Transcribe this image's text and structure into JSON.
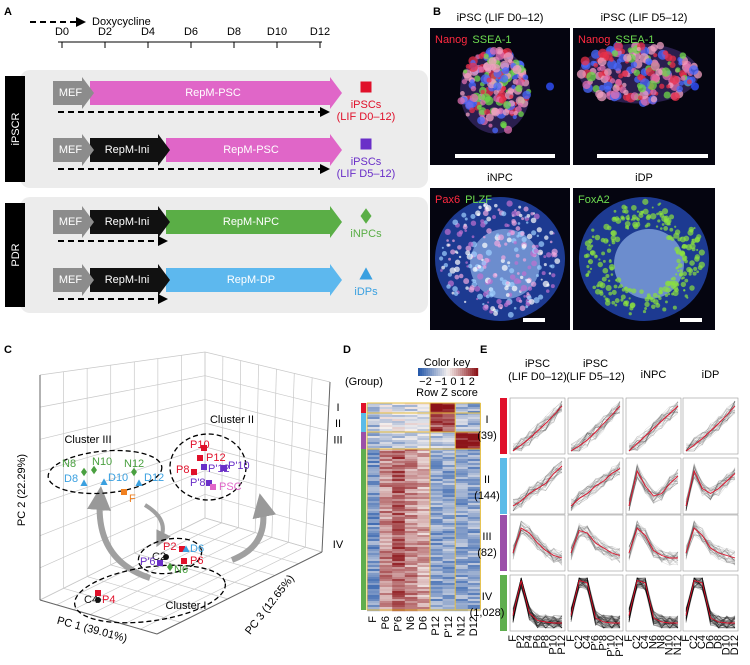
{
  "panel_labels": {
    "a": "A",
    "b": "B",
    "c": "C",
    "d": "D",
    "e": "E"
  },
  "panel_a": {
    "legend": "Doxycycline",
    "days": [
      "D0",
      "D2",
      "D4",
      "D6",
      "D8",
      "D10",
      "D12"
    ],
    "groups": [
      {
        "label": "iPSCR",
        "rows": [
          {
            "segments": [
              {
                "label": "MEF",
                "color": "#8c8c8c"
              },
              {
                "label": "RepM-PSC",
                "color": "#e066c8"
              }
            ],
            "marker": {
              "shape": "square",
              "color": "#e0102a"
            },
            "result": "iPSCs",
            "note": "(LIF D0–12)"
          },
          {
            "segments": [
              {
                "label": "MEF",
                "color": "#8c8c8c"
              },
              {
                "label": "RepM-Ini",
                "color": "#111111"
              },
              {
                "label": "RepM-PSC",
                "color": "#e066c8"
              }
            ],
            "marker": {
              "shape": "square",
              "color": "#6a2fc8"
            },
            "result": "iPSCs",
            "note": "(LIF D5–12)"
          }
        ]
      },
      {
        "label": "PDR",
        "rows": [
          {
            "segments": [
              {
                "label": "MEF",
                "color": "#8c8c8c"
              },
              {
                "label": "RepM-Ini",
                "color": "#111111"
              },
              {
                "label": "RepM-NPC",
                "color": "#5aae46"
              }
            ],
            "marker": {
              "shape": "diamond",
              "color": "#5aae46"
            },
            "result": "iNPCs"
          },
          {
            "segments": [
              {
                "label": "MEF",
                "color": "#8c8c8c"
              },
              {
                "label": "RepM-Ini",
                "color": "#111111"
              },
              {
                "label": "RepM-DP",
                "color": "#5db8ee"
              }
            ],
            "marker": {
              "shape": "triangle",
              "color": "#3aa0e0"
            },
            "result": "iDPs"
          }
        ]
      }
    ]
  },
  "panel_b": {
    "images": [
      {
        "title": "iPSC (LIF D0–12)",
        "stains": [
          {
            "text": "Nanog",
            "color": "#ff2a40"
          },
          {
            "text": "SSEA-1",
            "color": "#6ddc50"
          }
        ]
      },
      {
        "title": "iPSC (LIF D5–12)",
        "stains": [
          {
            "text": "Nanog",
            "color": "#ff2a40"
          },
          {
            "text": "SSEA-1",
            "color": "#6ddc50"
          }
        ]
      },
      {
        "title": "iNPC",
        "stains": [
          {
            "text": "Pax6",
            "color": "#ff2a40"
          },
          {
            "text": "PLZF",
            "color": "#6ddc50"
          }
        ]
      },
      {
        "title": "iDP",
        "stains": [
          {
            "text": "FoxA2",
            "color": "#6ddc50"
          }
        ]
      }
    ]
  },
  "panel_c": {
    "axes": {
      "x": "PC 1 (39.01%)",
      "y": "PC 2 (22.29%)",
      "z": "PC 3 (12.65%)"
    },
    "clusters": [
      "Cluster III",
      "Cluster II",
      "Cluster I"
    ],
    "points": [
      {
        "label": "N8",
        "shape": "diamond",
        "color": "#4aa040"
      },
      {
        "label": "N10",
        "shape": "diamond",
        "color": "#4aa040"
      },
      {
        "label": "N12",
        "shape": "diamond",
        "color": "#4aa040"
      },
      {
        "label": "D8",
        "shape": "triangle",
        "color": "#3aa0e0"
      },
      {
        "label": "D10",
        "shape": "triangle",
        "color": "#3aa0e0"
      },
      {
        "label": "D12",
        "shape": "triangle",
        "color": "#3aa0e0"
      },
      {
        "label": "F",
        "shape": "square",
        "color": "#f08020"
      },
      {
        "label": "P10",
        "shape": "square",
        "color": "#e0102a"
      },
      {
        "label": "P12",
        "shape": "square",
        "color": "#e0102a"
      },
      {
        "label": "P8",
        "shape": "square",
        "color": "#e0102a"
      },
      {
        "label": "P'12",
        "shape": "square",
        "color": "#6a2fc8"
      },
      {
        "label": "P'10",
        "shape": "square",
        "color": "#6a2fc8"
      },
      {
        "label": "P'8",
        "shape": "square",
        "color": "#6a2fc8"
      },
      {
        "label": "PSC",
        "shape": "square",
        "color": "#e066c8"
      },
      {
        "label": "P2",
        "shape": "square",
        "color": "#e0102a"
      },
      {
        "label": "D6",
        "shape": "triangle",
        "color": "#3aa0e0"
      },
      {
        "label": "C2",
        "shape": "circle",
        "color": "#111111"
      },
      {
        "label": "P6",
        "shape": "square",
        "color": "#e0102a"
      },
      {
        "label": "P'6",
        "shape": "square",
        "color": "#6a2fc8"
      },
      {
        "label": "N6",
        "shape": "diamond",
        "color": "#4aa040"
      },
      {
        "label": "C4",
        "shape": "circle",
        "color": "#111111"
      },
      {
        "label": "P4",
        "shape": "square",
        "color": "#e0102a"
      }
    ]
  },
  "panel_d": {
    "group_header": "(Group)",
    "color_key": "Color key",
    "key_ticks": "−2 −1 0 1 2",
    "key_label": "Row Z score",
    "groups": [
      "I",
      "II",
      "III",
      "IV"
    ],
    "columns": [
      "F",
      "P6",
      "P'6",
      "N6",
      "D6",
      "P12",
      "P'12",
      "N12",
      "D12"
    ]
  },
  "panel_e": {
    "conditions": [
      {
        "name": "iPSC",
        "note": "(LIF D0–12)"
      },
      {
        "name": "iPSC",
        "note": "(LIF D5–12)"
      },
      {
        "name": "iNPC"
      },
      {
        "name": "iDP"
      }
    ],
    "groups": [
      {
        "label": "I",
        "count": "(39)",
        "color": "#e0102a"
      },
      {
        "label": "II",
        "count": "(144)",
        "color": "#5bbbe8"
      },
      {
        "label": "III",
        "count": "(82)",
        "color": "#9b4fa8"
      },
      {
        "label": "IV",
        "count": "(1,028)",
        "color": "#5fae4e"
      }
    ],
    "xlabels": [
      [
        "F",
        "P2",
        "P4",
        "P6",
        "P8",
        "P10",
        "P12"
      ],
      [
        "F",
        "C2",
        "C4",
        "P'6",
        "P'8",
        "P'10",
        "P'12"
      ],
      [
        "F",
        "C2",
        "C4",
        "N6",
        "N8",
        "N10",
        "N12"
      ],
      [
        "F",
        "C2",
        "C4",
        "D6",
        "D8",
        "D10",
        "D12"
      ]
    ]
  }
}
